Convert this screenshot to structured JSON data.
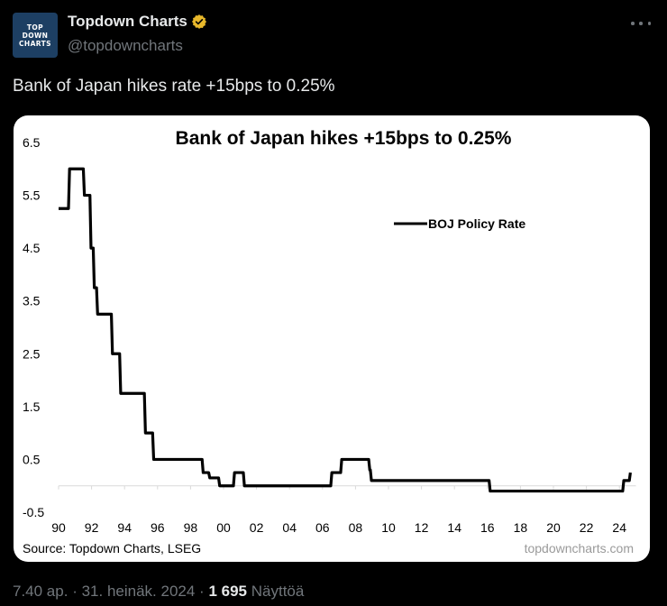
{
  "author": {
    "display_name": "Topdown Charts",
    "handle": "@topdowncharts",
    "verified": true,
    "avatar_lines": [
      "TOP",
      "DOWN",
      "CHARTS"
    ],
    "avatar_color": "#1d3f63",
    "badge_color": "#e8b82b"
  },
  "menu_icon": "more-horizontal-icon",
  "tweet_text": "Bank of Japan hikes rate +15bps to 0.25%",
  "footer": {
    "time": "7.40 ap.",
    "separator": "·",
    "date": "31. heinäk. 2024",
    "views_count": "1 695",
    "views_label": "Näyttöä"
  },
  "chart_data": {
    "type": "line",
    "title": "Bank of Japan hikes +15bps to 0.25%",
    "xlabel": "",
    "ylabel": "",
    "series": [
      {
        "name": "BOJ Policy Rate",
        "color": "#000000",
        "step": true,
        "points": [
          [
            1990.0,
            5.25
          ],
          [
            1990.6,
            6.0
          ],
          [
            1991.5,
            5.5
          ],
          [
            1991.9,
            4.5
          ],
          [
            1992.1,
            3.75
          ],
          [
            1992.3,
            3.25
          ],
          [
            1993.2,
            2.5
          ],
          [
            1993.7,
            1.75
          ],
          [
            1995.2,
            1.0
          ],
          [
            1995.7,
            0.5
          ],
          [
            1998.7,
            0.25
          ],
          [
            1999.1,
            0.15
          ],
          [
            1999.7,
            0.0
          ],
          [
            2000.6,
            0.25
          ],
          [
            2001.2,
            0.0
          ],
          [
            2006.5,
            0.25
          ],
          [
            2007.1,
            0.5
          ],
          [
            2008.8,
            0.3
          ],
          [
            2008.9,
            0.1
          ],
          [
            2016.1,
            -0.1
          ],
          [
            2024.2,
            0.1
          ],
          [
            2024.6,
            0.25
          ]
        ]
      }
    ],
    "xlim": [
      1990,
      2025
    ],
    "ylim": [
      -0.5,
      6.5
    ],
    "x_ticks": [
      1990,
      1992,
      1994,
      1996,
      1998,
      2000,
      2002,
      2004,
      2006,
      2008,
      2010,
      2012,
      2014,
      2016,
      2018,
      2020,
      2022,
      2024
    ],
    "x_tick_labels": [
      "90",
      "92",
      "94",
      "96",
      "98",
      "00",
      "02",
      "04",
      "06",
      "08",
      "10",
      "12",
      "14",
      "16",
      "18",
      "20",
      "22",
      "24"
    ],
    "y_ticks": [
      6.5,
      5.5,
      4.5,
      3.5,
      2.5,
      1.5,
      0.5,
      -0.5
    ],
    "y_tick_labels": [
      "6.5",
      "5.5",
      "4.5",
      "3.5",
      "2.5",
      "1.5",
      "0.5",
      "-0.5"
    ],
    "legend": {
      "position": "top-right",
      "entries": [
        "BOJ Policy Rate"
      ]
    },
    "grid": false,
    "source": "Source: Topdown Charts, LSEG",
    "watermark": "topdowncharts.com"
  }
}
